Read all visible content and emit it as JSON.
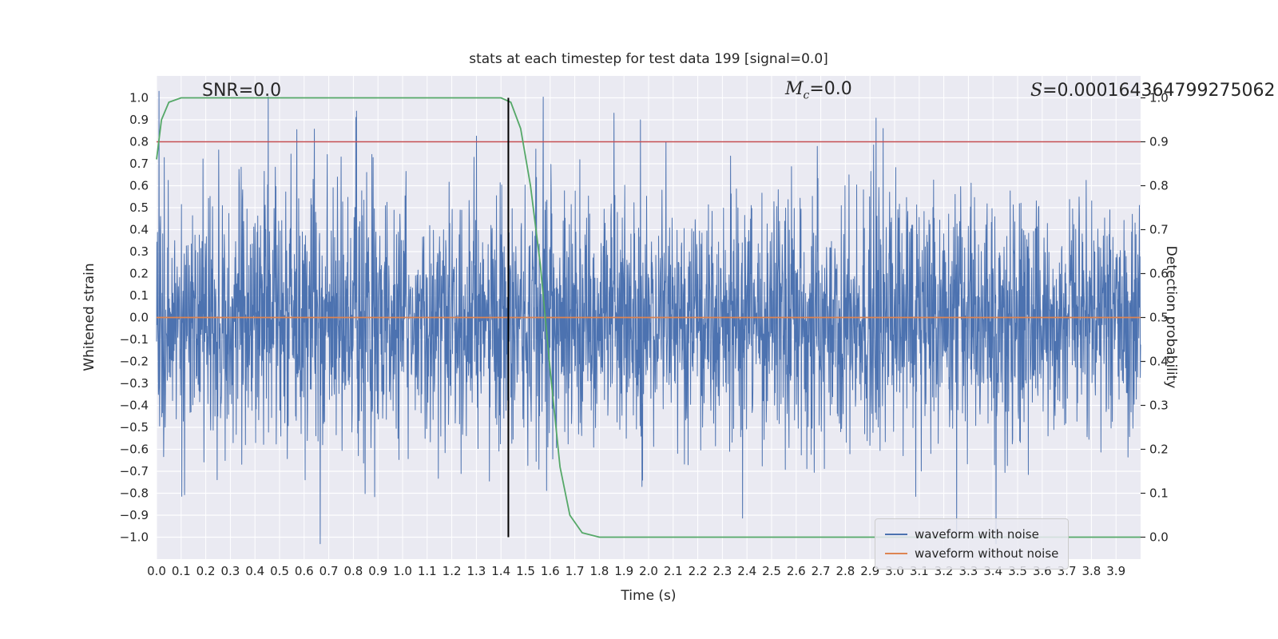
{
  "chart_data": {
    "type": "line",
    "title": "stats at each timestep for test data 199 [signal=0.0]",
    "xlabel": "Time (s)",
    "ylabel_left": "Whitened strain",
    "ylabel_right": "Detection probability",
    "xlim": [
      0,
      4.0
    ],
    "ylim_left": [
      -1.1,
      1.1
    ],
    "ylim_right": [
      -0.05,
      1.05
    ],
    "grid": true,
    "background": "#eaeaf2",
    "grid_color": "#ffffff",
    "text_color": "#262626",
    "x_ticks": [
      "0.0",
      "0.1",
      "0.2",
      "0.3",
      "0.4",
      "0.5",
      "0.6",
      "0.7",
      "0.8",
      "0.9",
      "1.0",
      "1.1",
      "1.2",
      "1.3",
      "1.4",
      "1.5",
      "1.6",
      "1.7",
      "1.8",
      "1.9",
      "2.0",
      "2.1",
      "2.2",
      "2.3",
      "2.4",
      "2.5",
      "2.6",
      "2.7",
      "2.8",
      "2.9",
      "3.0",
      "3.1",
      "3.2",
      "3.3",
      "3.4",
      "3.5",
      "3.6",
      "3.7",
      "3.8",
      "3.9"
    ],
    "y_ticks_left": [
      "1.0",
      "0.9",
      "0.8",
      "0.7",
      "0.6",
      "0.5",
      "0.4",
      "0.3",
      "0.2",
      "0.1",
      "0.0",
      "−0.1",
      "−0.2",
      "−0.3",
      "−0.4",
      "−0.5",
      "−0.6",
      "−0.7",
      "−0.8",
      "−0.9",
      "−1.0"
    ],
    "y_ticks_right": [
      "1.0",
      "0.9",
      "0.8",
      "0.7",
      "0.6",
      "0.5",
      "0.4",
      "0.3",
      "0.2",
      "0.1",
      "0.0"
    ],
    "annotations": {
      "snr": "SNR=0.0",
      "mc_main": "M",
      "mc_sub": "c",
      "mc_value": "=0.0",
      "s_label": "S",
      "s_value": "=0.000164364799275062"
    },
    "legend": {
      "position": "lower right",
      "items": [
        {
          "label": "waveform with noise",
          "color": "#4c72b0"
        },
        {
          "label": "waveform without noise",
          "color": "#dd8452"
        }
      ]
    },
    "series": [
      {
        "name": "waveform with noise",
        "axis": "left",
        "color": "#4c72b0",
        "line_width": 1,
        "type": "noise",
        "seed": 199,
        "n": 3200,
        "std": 0.27,
        "spike_prob": 0.03,
        "spike_scale": 2.0,
        "clip": 1.03
      },
      {
        "name": "waveform without noise",
        "axis": "left",
        "color": "#dd8452",
        "line_width": 1.8,
        "type": "points",
        "points": [
          [
            0,
            0
          ],
          [
            4,
            0
          ]
        ]
      },
      {
        "name": "detection threshold",
        "axis": "right",
        "color": "#c44e52",
        "line_width": 1.5,
        "type": "points",
        "points": [
          [
            0,
            0.9
          ],
          [
            4,
            0.9
          ]
        ]
      },
      {
        "name": "detection probability",
        "axis": "right",
        "color": "#55a868",
        "line_width": 1.8,
        "type": "points",
        "points": [
          [
            0.0,
            0.86
          ],
          [
            0.02,
            0.95
          ],
          [
            0.05,
            0.99
          ],
          [
            0.1,
            1.0
          ],
          [
            1.4,
            1.0
          ],
          [
            1.44,
            0.99
          ],
          [
            1.48,
            0.93
          ],
          [
            1.52,
            0.8
          ],
          [
            1.56,
            0.62
          ],
          [
            1.6,
            0.38
          ],
          [
            1.64,
            0.16
          ],
          [
            1.68,
            0.05
          ],
          [
            1.73,
            0.01
          ],
          [
            1.8,
            0.0
          ],
          [
            4.0,
            0.0
          ]
        ]
      },
      {
        "name": "event marker",
        "axis": "right",
        "color": "#000000",
        "line_width": 2,
        "type": "vline",
        "x": 1.43,
        "y_from": 0.0,
        "y_to": 1.0
      }
    ]
  }
}
